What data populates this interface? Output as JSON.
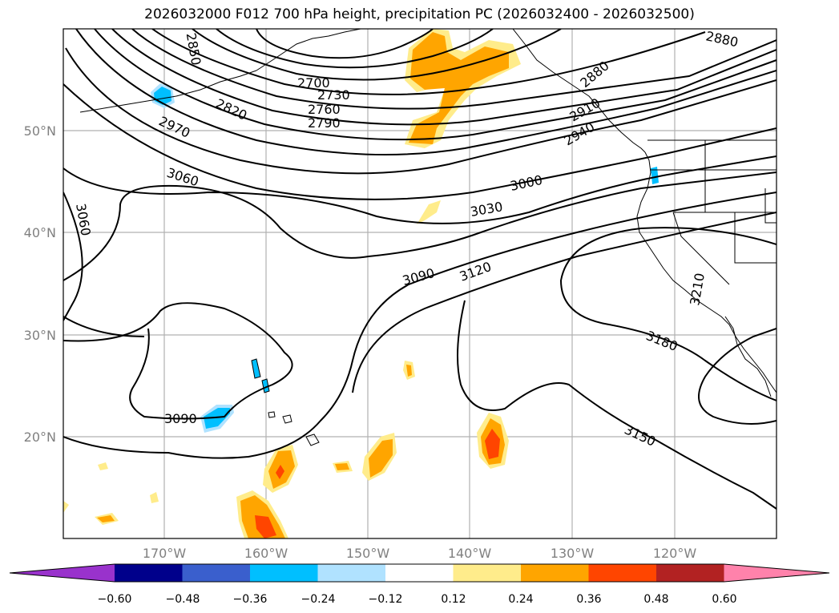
{
  "title": "2026032000 F012 700 hPa height, precipitation PC (2026032400 - 2026032500)",
  "lat_labels": [
    "50°N",
    "40°N",
    "30°N",
    "20°N"
  ],
  "lon_labels": [
    "170°W",
    "160°W",
    "150°W",
    "140°W",
    "130°W",
    "120°W"
  ],
  "contour_labels": [
    "2850",
    "2700",
    "2730",
    "2760",
    "2790",
    "2820",
    "2970",
    "3060",
    "3060",
    "2880",
    "2880",
    "2910",
    "2940",
    "3000",
    "3030",
    "3090",
    "3120",
    "3090",
    "3210",
    "3180",
    "3150"
  ],
  "colorbar": {
    "ticks": [
      "−0.60",
      "−0.48",
      "−0.36",
      "−0.24",
      "−0.12",
      "0.12",
      "0.24",
      "0.36",
      "0.48",
      "0.60"
    ],
    "colors": [
      "#9932cc",
      "#00008b",
      "#3a5fcd",
      "#00bfff",
      "#b0e2ff",
      "#ffffff",
      "#ffec8b",
      "#ffa500",
      "#ff4500",
      "#b22222",
      "#ff82ab"
    ]
  },
  "colors": {
    "precip_light": "#ffec8b",
    "precip_mid": "#ffa500",
    "precip_heavy": "#ff4500",
    "neg_light": "#b0e2ff",
    "neg_mid": "#00bfff"
  }
}
